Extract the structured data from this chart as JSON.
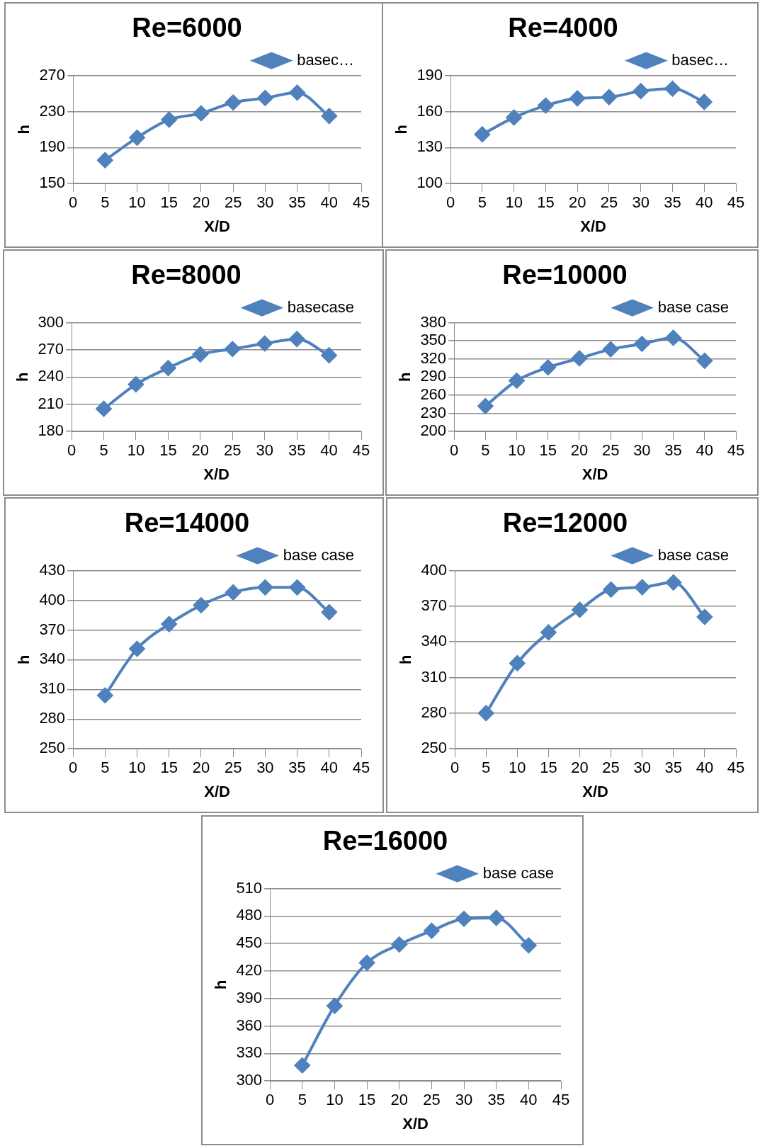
{
  "chart_data": [
    {
      "type": "line",
      "title": "Re=6000",
      "xlabel": "X/D",
      "ylabel": "h",
      "x": [
        5,
        10,
        15,
        20,
        25,
        30,
        35,
        40
      ],
      "xlim": [
        0,
        45
      ],
      "xticks": [
        0,
        5,
        10,
        15,
        20,
        25,
        30,
        35,
        40,
        45
      ],
      "ylim": [
        150,
        270
      ],
      "yticks": [
        150,
        190,
        230,
        270
      ],
      "grid": "y",
      "legend": "top right",
      "marker": "diamond",
      "series": [
        {
          "name": "basec…",
          "color": "#4f81bd",
          "values": [
            176,
            201,
            221,
            228,
            240,
            245,
            251,
            225
          ]
        }
      ]
    },
    {
      "type": "line",
      "title": "Re=4000",
      "xlabel": "X/D",
      "ylabel": "h",
      "x": [
        5,
        10,
        15,
        20,
        25,
        30,
        35,
        40
      ],
      "xlim": [
        0,
        45
      ],
      "xticks": [
        0,
        5,
        10,
        15,
        20,
        25,
        30,
        35,
        40,
        45
      ],
      "ylim": [
        100,
        190
      ],
      "yticks": [
        100,
        130,
        160,
        190
      ],
      "grid": "y",
      "legend": "top right",
      "marker": "diamond",
      "series": [
        {
          "name": "basec…",
          "color": "#4f81bd",
          "values": [
            141,
            155,
            165,
            171,
            172,
            177,
            179,
            168
          ]
        }
      ]
    },
    {
      "type": "line",
      "title": "Re=8000",
      "xlabel": "X/D",
      "ylabel": "h",
      "x": [
        5,
        10,
        15,
        20,
        25,
        30,
        35,
        40
      ],
      "xlim": [
        0,
        45
      ],
      "xticks": [
        0,
        5,
        10,
        15,
        20,
        25,
        30,
        35,
        40,
        45
      ],
      "ylim": [
        180,
        300
      ],
      "yticks": [
        180,
        210,
        240,
        270,
        300
      ],
      "grid": "y",
      "legend": "top right",
      "marker": "diamond",
      "series": [
        {
          "name": "basecase",
          "color": "#4f81bd",
          "values": [
            205,
            232,
            250,
            265,
            271,
            277,
            282,
            264
          ]
        }
      ]
    },
    {
      "type": "line",
      "title": "Re=10000",
      "xlabel": "X/D",
      "ylabel": "h",
      "x": [
        5,
        10,
        15,
        20,
        25,
        30,
        35,
        40
      ],
      "xlim": [
        0,
        45
      ],
      "xticks": [
        0,
        5,
        10,
        15,
        20,
        25,
        30,
        35,
        40,
        45
      ],
      "ylim": [
        200,
        380
      ],
      "yticks": [
        200,
        230,
        260,
        290,
        320,
        350,
        380
      ],
      "grid": "y",
      "legend": "top right",
      "marker": "diamond",
      "series": [
        {
          "name": "base case",
          "color": "#4f81bd",
          "values": [
            242,
            284,
            306,
            321,
            336,
            345,
            355,
            317
          ]
        }
      ]
    },
    {
      "type": "line",
      "title": "Re=14000",
      "xlabel": "X/D",
      "ylabel": "h",
      "x": [
        5,
        10,
        15,
        20,
        25,
        30,
        35,
        40
      ],
      "xlim": [
        0,
        45
      ],
      "xticks": [
        0,
        5,
        10,
        15,
        20,
        25,
        30,
        35,
        40,
        45
      ],
      "ylim": [
        250,
        430
      ],
      "yticks": [
        250,
        280,
        310,
        340,
        370,
        400,
        430
      ],
      "grid": "y",
      "legend": "top right",
      "marker": "diamond",
      "series": [
        {
          "name": "base case",
          "color": "#4f81bd",
          "values": [
            304,
            351,
            376,
            395,
            408,
            413,
            413,
            388
          ]
        }
      ]
    },
    {
      "type": "line",
      "title": "Re=12000",
      "xlabel": "X/D",
      "ylabel": "h",
      "x": [
        5,
        10,
        15,
        20,
        25,
        30,
        35,
        40
      ],
      "xlim": [
        0,
        45
      ],
      "xticks": [
        0,
        5,
        10,
        15,
        20,
        25,
        30,
        35,
        40,
        45
      ],
      "ylim": [
        250,
        400
      ],
      "yticks": [
        250,
        280,
        310,
        340,
        370,
        400
      ],
      "grid": "y",
      "legend": "top right",
      "marker": "diamond",
      "series": [
        {
          "name": "base case",
          "color": "#4f81bd",
          "values": [
            280,
            322,
            348,
            367,
            384,
            386,
            390,
            361
          ]
        }
      ]
    },
    {
      "type": "line",
      "title": "Re=16000",
      "xlabel": "X/D",
      "ylabel": "h",
      "x": [
        5,
        10,
        15,
        20,
        25,
        30,
        35,
        40
      ],
      "xlim": [
        0,
        45
      ],
      "xticks": [
        0,
        5,
        10,
        15,
        20,
        25,
        30,
        35,
        40,
        45
      ],
      "ylim": [
        300,
        510
      ],
      "yticks": [
        300,
        330,
        360,
        390,
        420,
        450,
        480,
        510
      ],
      "grid": "y",
      "legend": "top right",
      "marker": "diamond",
      "series": [
        {
          "name": "base case",
          "color": "#4f81bd",
          "values": [
            317,
            382,
            429,
            449,
            464,
            477,
            478,
            448
          ]
        }
      ]
    }
  ]
}
